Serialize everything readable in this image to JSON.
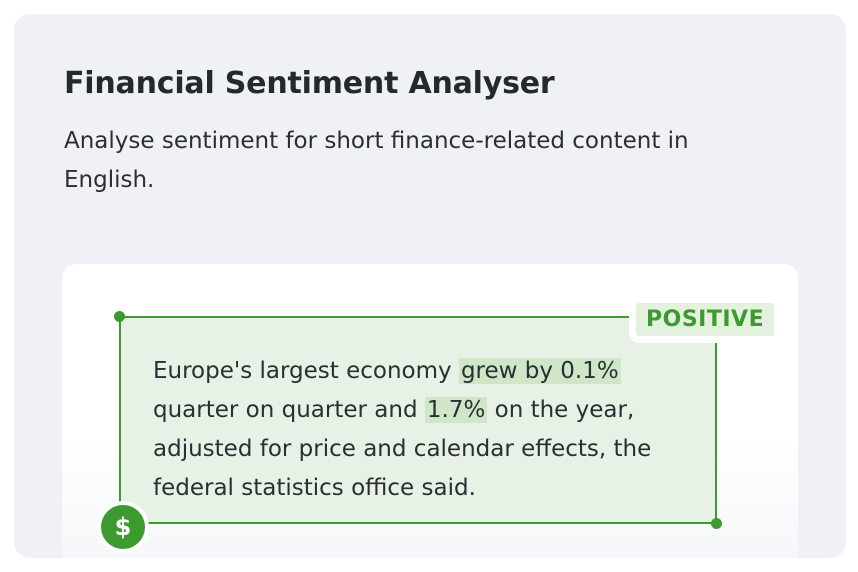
{
  "header": {
    "title": "Financial Sentiment Analyser",
    "subtitle": "Analyse sentiment for short finance-related content in English."
  },
  "example": {
    "sentiment_label": "POSITIVE",
    "text_part_1": "Europe's largest economy ",
    "highlight_1": "grew by 0.1%",
    "text_part_2": " quarter on quarter and ",
    "highlight_2": "1.7%",
    "text_part_3": " on the year, adjusted for price and calendar effects, the federal statistics office said.",
    "icon": "dollar-icon",
    "icon_glyph": "$",
    "accent_color": "#3d9a2f",
    "highlight_color": "#cfe6c8"
  }
}
